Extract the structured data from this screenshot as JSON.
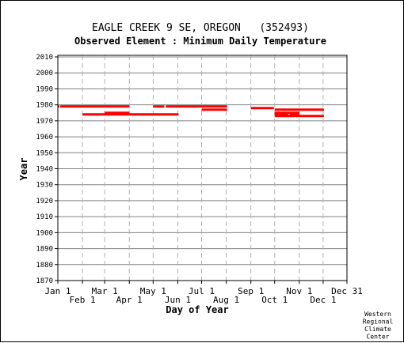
{
  "chart_data": {
    "type": "line",
    "title": "EAGLE CREEK 9 SE, OREGON   (352493)",
    "subtitle": "Observed Element : Minimum Daily Temperature",
    "xlabel": "Day of Year",
    "ylabel": "Year",
    "credit": [
      "Western",
      "Regional",
      "Climate",
      "Center"
    ],
    "x_ticks_row1": [
      {
        "label": "Jan 1",
        "day": 1
      },
      {
        "label": "Mar 1",
        "day": 60
      },
      {
        "label": "May 1",
        "day": 121
      },
      {
        "label": "Jul 1",
        "day": 182
      },
      {
        "label": "Sep 1",
        "day": 244
      },
      {
        "label": "Nov 1",
        "day": 305
      },
      {
        "label": "Dec 31",
        "day": 365
      }
    ],
    "x_ticks_row2": [
      {
        "label": "Feb 1",
        "day": 32
      },
      {
        "label": "Apr 1",
        "day": 91
      },
      {
        "label": "Jun 1",
        "day": 152
      },
      {
        "label": "Aug 1",
        "day": 213
      },
      {
        "label": "Oct 1",
        "day": 274
      },
      {
        "label": "Dec 1",
        "day": 335
      }
    ],
    "xlim": [
      1,
      365
    ],
    "y_ticks": [
      1870,
      1880,
      1890,
      1900,
      1910,
      1920,
      1930,
      1940,
      1950,
      1960,
      1970,
      1980,
      1990,
      2000,
      2010
    ],
    "ylim": [
      1870,
      2011
    ],
    "grid": true,
    "colors": {
      "data": "#ff0000",
      "grid_major": "#808080",
      "grid_minor": "#b0b0b0",
      "axis": "#000000"
    },
    "segments": [
      {
        "year": 1979,
        "start_day": 1,
        "end_day": 2
      },
      {
        "year": 1979,
        "start_day": 4,
        "end_day": 90
      },
      {
        "year": 1979,
        "start_day": 121,
        "end_day": 134
      },
      {
        "year": 1979,
        "start_day": 137,
        "end_day": 213
      },
      {
        "year": 1978,
        "start_day": 244,
        "end_day": 272
      },
      {
        "year": 1977,
        "start_day": 182,
        "end_day": 213
      },
      {
        "year": 1977,
        "start_day": 274,
        "end_day": 335
      },
      {
        "year": 1975,
        "start_day": 60,
        "end_day": 90
      },
      {
        "year": 1975,
        "start_day": 274,
        "end_day": 304
      },
      {
        "year": 1974,
        "start_day": 32,
        "end_day": 152
      },
      {
        "year": 1974,
        "start_day": 274,
        "end_day": 290
      },
      {
        "year": 1974,
        "start_day": 293,
        "end_day": 304
      },
      {
        "year": 1973,
        "start_day": 274,
        "end_day": 335
      }
    ]
  }
}
